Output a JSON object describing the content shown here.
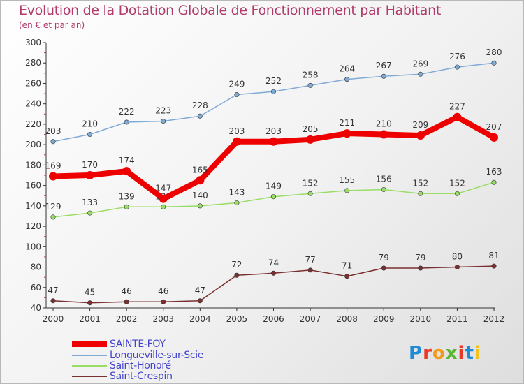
{
  "title": "Evolution de la Dotation Globale de Fonctionnement par Habitant",
  "subtitle": "(en € et par an)",
  "logo": {
    "text": "Proxiti",
    "colors": [
      "#1f8ad6",
      "#e83a2a",
      "#f29a1d",
      "#5ab530",
      "#e83a2a",
      "#1f8ad6",
      "#f2c21d"
    ]
  },
  "chart_data": {
    "type": "line",
    "x": [
      "2000",
      "2001",
      "2002",
      "2003",
      "2004",
      "2005",
      "2006",
      "2007",
      "2008",
      "2009",
      "2010",
      "2011",
      "2012"
    ],
    "ylim": [
      40,
      300
    ],
    "yticks": [
      "300",
      "280",
      "260",
      "240",
      "220",
      "200",
      "180",
      "160",
      "140",
      "120",
      "100",
      "80",
      "60",
      "40"
    ],
    "grid": false,
    "series": [
      {
        "name": "SAINTE-FOY",
        "color": "#ee0000",
        "labels": [
          "169",
          "170",
          "174",
          "147",
          "165",
          "203",
          "203",
          "205",
          "211",
          "210",
          "209",
          "227",
          "207"
        ],
        "values": [
          169,
          170,
          174,
          147,
          165,
          203,
          203,
          205,
          211,
          210,
          209,
          227,
          207
        ]
      },
      {
        "name": "Longueville-sur-Scie",
        "color": "#80aad6",
        "labels": [
          "203",
          "210",
          "222",
          "223",
          "228",
          "249",
          "252",
          "258",
          "264",
          "267",
          "269",
          "276",
          "280"
        ],
        "values": [
          203,
          210,
          222,
          223,
          228,
          249,
          252,
          258,
          264,
          267,
          269,
          276,
          280
        ]
      },
      {
        "name": "Saint-Honoré",
        "color": "#99dd66",
        "labels": [
          "129",
          "133",
          "139",
          "139",
          "140",
          "143",
          "149",
          "152",
          "155",
          "156",
          "152",
          "152",
          "163"
        ],
        "values": [
          129,
          133,
          139,
          139,
          140,
          143,
          149,
          152,
          155,
          156,
          152,
          152,
          163
        ]
      },
      {
        "name": "Saint-Crespin",
        "color": "#7a3030",
        "labels": [
          "47",
          "45",
          "46",
          "46",
          "47",
          "72",
          "74",
          "77",
          "71",
          "79",
          "79",
          "80",
          "81"
        ],
        "values": [
          47,
          45,
          46,
          46,
          47,
          72,
          74,
          77,
          71,
          79,
          79,
          80,
          81
        ]
      }
    ],
    "legend_position": "bottom-left"
  }
}
